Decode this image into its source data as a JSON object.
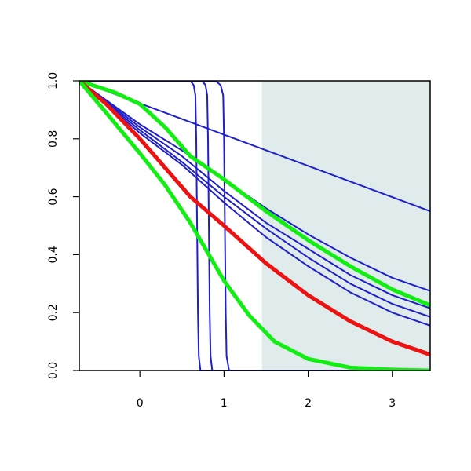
{
  "chart_data": {
    "type": "line",
    "title": "",
    "xlabel": "",
    "ylabel": "",
    "xlim": [
      -0.72,
      3.45
    ],
    "ylim": [
      0,
      1
    ],
    "grid": false,
    "x_ticks": [
      0,
      1,
      2,
      3
    ],
    "y_ticks": [
      0.0,
      0.2,
      0.4,
      0.6,
      0.8,
      1.0
    ],
    "x_tick_labels": [
      "0",
      "1",
      "2",
      "3"
    ],
    "y_tick_labels": [
      "0.0",
      "0.2",
      "0.4",
      "0.6",
      "0.8",
      "1.0"
    ],
    "shaded_region": {
      "x": [
        1.45,
        3.45
      ],
      "color": "#e0ecec"
    },
    "colors": {
      "blue": "#1f1fcc",
      "red": "#ee1111",
      "green": "#11ee11",
      "axis": "#000000",
      "shade": "#e0ecec"
    },
    "series": [
      {
        "color": "#1f1fcc",
        "style": "thin",
        "x": [
          -0.72,
          3.45
        ],
        "y": [
          1.0,
          0.55
        ]
      },
      {
        "color": "#1f1fcc",
        "style": "thin",
        "x": [
          -0.72,
          0.0,
          0.5,
          1.0,
          1.5,
          2.0,
          2.5,
          3.0,
          3.45
        ],
        "y": [
          1.0,
          0.85,
          0.76,
          0.66,
          0.56,
          0.47,
          0.39,
          0.32,
          0.275
        ]
      },
      {
        "color": "#1f1fcc",
        "style": "thin",
        "x": [
          -0.72,
          0.0,
          0.5,
          1.0,
          1.5,
          2.0,
          2.5,
          3.0,
          3.45
        ],
        "y": [
          1.0,
          0.84,
          0.74,
          0.62,
          0.51,
          0.42,
          0.33,
          0.26,
          0.215
        ]
      },
      {
        "color": "#1f1fcc",
        "style": "thin",
        "x": [
          -0.72,
          0.0,
          0.5,
          1.0,
          1.5,
          2.0,
          2.5,
          3.0,
          3.45
        ],
        "y": [
          1.0,
          0.83,
          0.72,
          0.6,
          0.49,
          0.39,
          0.3,
          0.23,
          0.185
        ]
      },
      {
        "color": "#1f1fcc",
        "style": "thin",
        "x": [
          -0.72,
          0.0,
          0.5,
          1.0,
          1.5,
          2.0,
          2.5,
          3.0,
          3.45
        ],
        "y": [
          1.0,
          0.82,
          0.71,
          0.58,
          0.46,
          0.36,
          0.27,
          0.2,
          0.155
        ]
      },
      {
        "color": "#1f1fcc",
        "style": "thin",
        "x": [
          -0.72,
          0.6,
          0.64,
          0.66,
          0.67,
          0.68,
          0.69,
          0.7,
          0.72,
          3.45
        ],
        "y": [
          1.0,
          1.0,
          0.985,
          0.95,
          0.8,
          0.5,
          0.2,
          0.05,
          0.0,
          0.0
        ]
      },
      {
        "color": "#1f1fcc",
        "style": "thin",
        "x": [
          -0.72,
          0.74,
          0.78,
          0.8,
          0.81,
          0.82,
          0.83,
          0.84,
          0.86,
          3.45
        ],
        "y": [
          1.0,
          1.0,
          0.985,
          0.95,
          0.8,
          0.5,
          0.2,
          0.05,
          0.0,
          0.0
        ]
      },
      {
        "color": "#1f1fcc",
        "style": "thin",
        "x": [
          -0.72,
          0.9,
          0.96,
          0.99,
          1.0,
          1.01,
          1.02,
          1.03,
          1.06,
          3.45
        ],
        "y": [
          1.0,
          1.0,
          0.985,
          0.95,
          0.8,
          0.5,
          0.2,
          0.05,
          0.0,
          0.0
        ]
      },
      {
        "color": "#11ee11",
        "style": "thick",
        "x": [
          -0.72,
          -0.3,
          0.0,
          0.3,
          0.6,
          1.0,
          1.5,
          2.0,
          2.5,
          3.0,
          3.45
        ],
        "y": [
          1.0,
          0.96,
          0.92,
          0.84,
          0.74,
          0.66,
          0.55,
          0.45,
          0.36,
          0.28,
          0.225
        ]
      },
      {
        "color": "#ee1111",
        "style": "thick",
        "x": [
          -0.72,
          -0.4,
          0.0,
          0.3,
          0.6,
          1.0,
          1.5,
          2.0,
          2.5,
          3.0,
          3.45
        ],
        "y": [
          1.0,
          0.92,
          0.8,
          0.7,
          0.6,
          0.5,
          0.37,
          0.26,
          0.17,
          0.1,
          0.055
        ]
      },
      {
        "color": "#11ee11",
        "style": "thick",
        "x": [
          -0.72,
          -0.4,
          0.0,
          0.3,
          0.6,
          0.8,
          1.0,
          1.3,
          1.6,
          2.0,
          2.5,
          3.0,
          3.45
        ],
        "y": [
          1.0,
          0.89,
          0.75,
          0.64,
          0.51,
          0.41,
          0.31,
          0.19,
          0.1,
          0.04,
          0.01,
          0.003,
          0.0
        ]
      }
    ]
  }
}
